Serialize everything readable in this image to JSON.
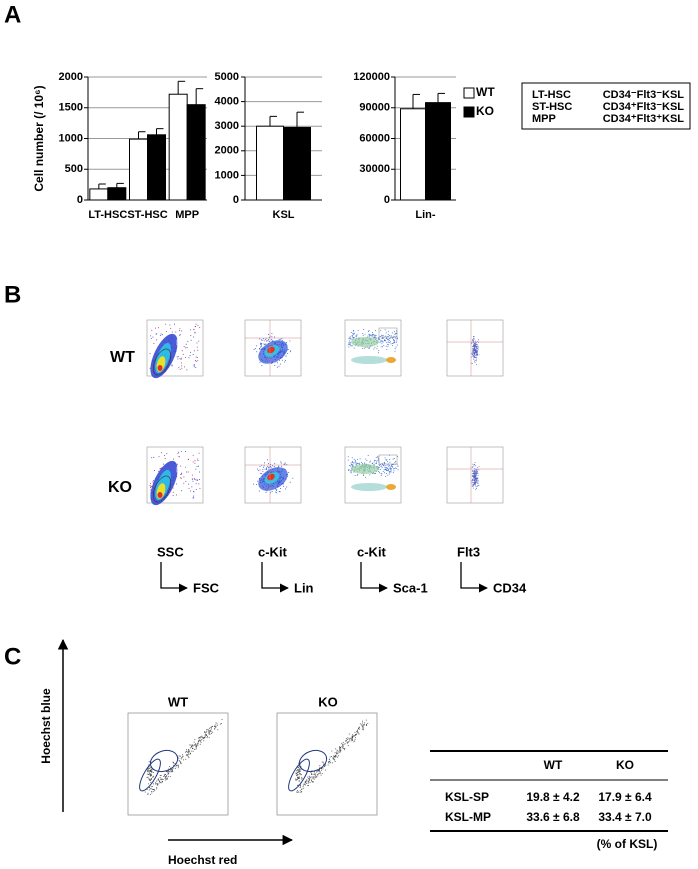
{
  "panel_labels": [
    "A",
    "B",
    "C"
  ],
  "chart_data": [
    {
      "type": "bar",
      "y_label": "Cell number (/ 10⁶)",
      "categories": [
        "LT-HSC",
        "ST-HSC",
        "MPP"
      ],
      "series": [
        {
          "name": "WT",
          "color": "#ffffff",
          "values": [
            180,
            990,
            1720
          ],
          "errors": [
            80,
            120,
            210
          ]
        },
        {
          "name": "KO",
          "color": "#000000",
          "values": [
            200,
            1060,
            1550
          ],
          "errors": [
            70,
            100,
            260
          ]
        }
      ],
      "ylim": [
        0,
        2000
      ],
      "yticks": [
        0,
        500,
        1000,
        1500,
        2000
      ],
      "grid": true
    },
    {
      "type": "bar",
      "categories": [
        "KSL"
      ],
      "series": [
        {
          "name": "WT",
          "color": "#ffffff",
          "values": [
            3000
          ],
          "errors": [
            400
          ]
        },
        {
          "name": "KO",
          "color": "#000000",
          "values": [
            2950
          ],
          "errors": [
            620
          ]
        }
      ],
      "ylim": [
        0,
        5000
      ],
      "yticks": [
        0,
        1000,
        2000,
        3000,
        4000,
        5000
      ],
      "grid": true
    },
    {
      "type": "bar",
      "categories": [
        "Lin-"
      ],
      "series": [
        {
          "name": "WT",
          "color": "#ffffff",
          "values": [
            89000
          ],
          "errors": [
            14000
          ]
        },
        {
          "name": "KO",
          "color": "#000000",
          "values": [
            95000
          ],
          "errors": [
            9000
          ]
        }
      ],
      "ylim": [
        0,
        120000
      ],
      "yticks": [
        0,
        30000,
        60000,
        90000,
        120000
      ],
      "grid": true,
      "legend": "right"
    }
  ],
  "definitions": {
    "rows": [
      [
        "LT-HSC",
        "CD34⁻Flt3⁻KSL"
      ],
      [
        "ST-HSC",
        "CD34⁺Flt3⁻KSL"
      ],
      [
        "MPP",
        "CD34⁺Flt3⁺KSL"
      ]
    ]
  },
  "flow": {
    "rows": [
      "WT",
      "KO"
    ],
    "axes": [
      {
        "y": "SSC",
        "x": "FSC"
      },
      {
        "y": "c-Kit",
        "x": "Lin"
      },
      {
        "y": "c-Kit",
        "x": "Sca-1"
      },
      {
        "y": "Flt3",
        "x": "CD34"
      }
    ]
  },
  "hoechst": {
    "plots": [
      "WT",
      "KO"
    ],
    "y_axis": "Hoechst blue",
    "x_axis": "Hoechst red",
    "table": {
      "header": [
        "WT",
        "KO"
      ],
      "rows": [
        [
          "KSL-SP",
          "19.8 ± 4.2",
          "17.9 ± 6.4"
        ],
        [
          "KSL-MP",
          "33.6 ± 6.8",
          "33.4 ± 7.0"
        ]
      ],
      "note": "(% of KSL)"
    }
  }
}
